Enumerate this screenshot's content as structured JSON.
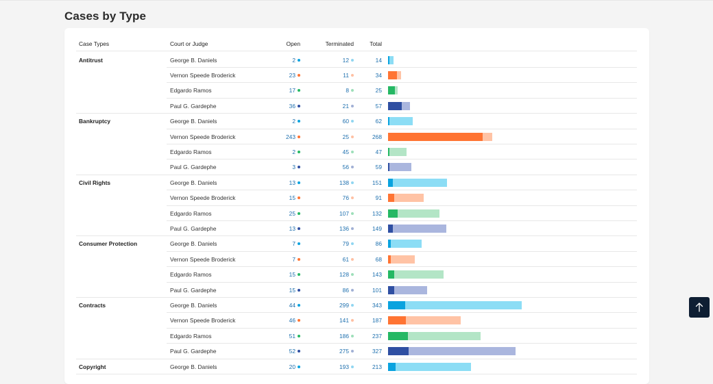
{
  "page": {
    "title": "Cases by Type"
  },
  "table": {
    "headers": {
      "case_type": "Case Types",
      "judge": "Court or Judge",
      "open": "Open",
      "terminated": "Terminated",
      "total": "Total"
    },
    "groups": [
      {
        "case_type": "Antitrust",
        "rows": [
          {
            "judge": "George B. Daniels",
            "open": "2",
            "terminated": "12",
            "total": "14",
            "color": "blue"
          },
          {
            "judge": "Vernon Speede Broderick",
            "open": "23",
            "terminated": "11",
            "total": "34",
            "color": "orange"
          },
          {
            "judge": "Edgardo Ramos",
            "open": "17",
            "terminated": "8",
            "total": "25",
            "color": "green"
          },
          {
            "judge": "Paul G. Gardephe",
            "open": "36",
            "terminated": "21",
            "total": "57",
            "color": "navy"
          }
        ]
      },
      {
        "case_type": "Bankruptcy",
        "rows": [
          {
            "judge": "George B. Daniels",
            "open": "2",
            "terminated": "60",
            "total": "62",
            "color": "blue"
          },
          {
            "judge": "Vernon Speede Broderick",
            "open": "243",
            "terminated": "25",
            "total": "268",
            "color": "orange"
          },
          {
            "judge": "Edgardo Ramos",
            "open": "2",
            "terminated": "45",
            "total": "47",
            "color": "green"
          },
          {
            "judge": "Paul G. Gardephe",
            "open": "3",
            "terminated": "56",
            "total": "59",
            "color": "navy"
          }
        ]
      },
      {
        "case_type": "Civil Rights",
        "rows": [
          {
            "judge": "George B. Daniels",
            "open": "13",
            "terminated": "138",
            "total": "151",
            "color": "blue"
          },
          {
            "judge": "Vernon Speede Broderick",
            "open": "15",
            "terminated": "76",
            "total": "91",
            "color": "orange"
          },
          {
            "judge": "Edgardo Ramos",
            "open": "25",
            "terminated": "107",
            "total": "132",
            "color": "green"
          },
          {
            "judge": "Paul G. Gardephe",
            "open": "13",
            "terminated": "136",
            "total": "149",
            "color": "navy"
          }
        ]
      },
      {
        "case_type": "Consumer Protection",
        "rows": [
          {
            "judge": "George B. Daniels",
            "open": "7",
            "terminated": "79",
            "total": "86",
            "color": "blue"
          },
          {
            "judge": "Vernon Speede Broderick",
            "open": "7",
            "terminated": "61",
            "total": "68",
            "color": "orange"
          },
          {
            "judge": "Edgardo Ramos",
            "open": "15",
            "terminated": "128",
            "total": "143",
            "color": "green"
          },
          {
            "judge": "Paul G. Gardephe",
            "open": "15",
            "terminated": "86",
            "total": "101",
            "color": "navy"
          }
        ]
      },
      {
        "case_type": "Contracts",
        "rows": [
          {
            "judge": "George B. Daniels",
            "open": "44",
            "terminated": "299",
            "total": "343",
            "color": "blue"
          },
          {
            "judge": "Vernon Speede Broderick",
            "open": "46",
            "terminated": "141",
            "total": "187",
            "color": "orange"
          },
          {
            "judge": "Edgardo Ramos",
            "open": "51",
            "terminated": "186",
            "total": "237",
            "color": "green"
          },
          {
            "judge": "Paul G. Gardephe",
            "open": "52",
            "terminated": "275",
            "total": "327",
            "color": "navy"
          }
        ]
      },
      {
        "case_type": "Copyright",
        "rows": [
          {
            "judge": "George B. Daniels",
            "open": "20",
            "terminated": "193",
            "total": "213",
            "color": "blue"
          }
        ]
      }
    ]
  },
  "colors": {
    "blue": {
      "open": "#0aa3df",
      "term": "#8cddf5",
      "dot": "#0aa3df"
    },
    "orange": {
      "open": "#ff7433",
      "term": "#ffc3a5",
      "dot": "#ff7433"
    },
    "green": {
      "open": "#25b864",
      "term": "#b3e5c6",
      "dot": "#25b864"
    },
    "navy": {
      "open": "#2f4fa2",
      "term": "#aab6de",
      "dot": "#2f4fa2"
    },
    "number_text": "#1d6fae"
  },
  "scroll_top": {
    "icon": "arrow-up-icon"
  }
}
